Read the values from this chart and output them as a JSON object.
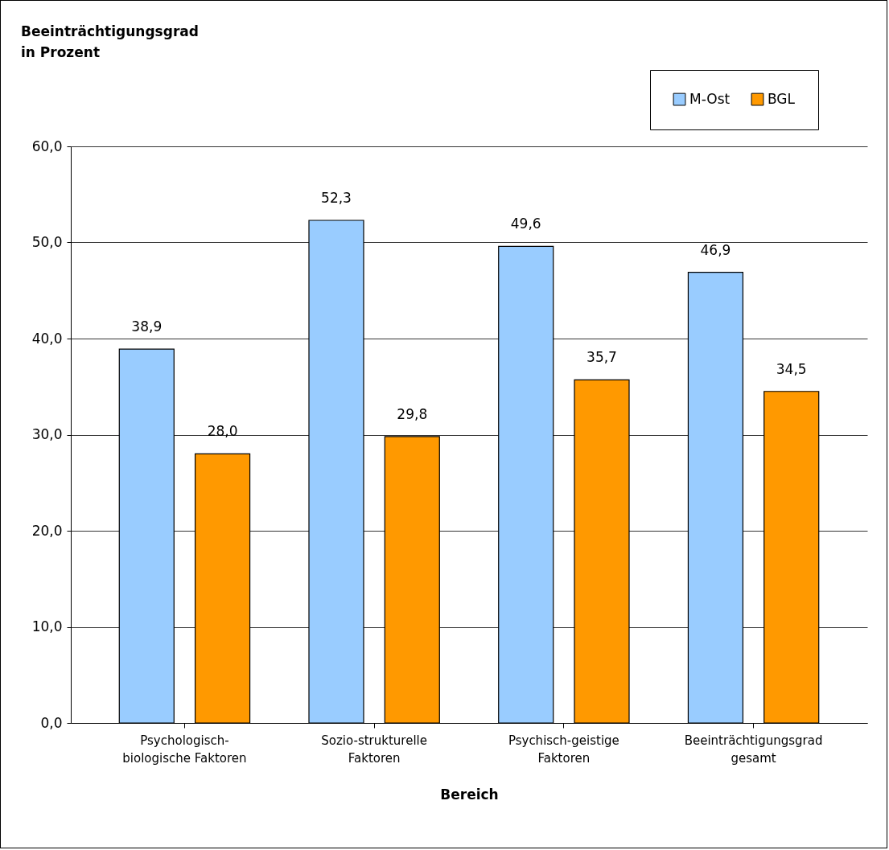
{
  "chart_data": {
    "type": "bar",
    "xlabel": "Bereich",
    "annotations": [
      "Beeinträchtigungsgrad\nin Prozent"
    ],
    "categories": [
      "Psychologisch-\nbiologische Faktoren",
      "Sozio-strukturelle\nFaktoren",
      "Psychisch-geistige\nFaktoren",
      "Beeinträchtigungsgrad\ngesamt"
    ],
    "series": [
      {
        "name": "M-Ost",
        "color": "#99ccff",
        "values": [
          38.9,
          52.3,
          49.6,
          46.9
        ],
        "value_labels": [
          "38,9",
          "52,3",
          "49,6",
          "46,9"
        ]
      },
      {
        "name": "BGL",
        "color": "#ff9900",
        "values": [
          28.0,
          29.8,
          35.7,
          34.5
        ],
        "value_labels": [
          "28,0",
          "29,8",
          "35,7",
          "34,5"
        ]
      }
    ],
    "ylim": [
      0,
      60
    ],
    "yticks": [
      {
        "value": 0,
        "label": "0,0"
      },
      {
        "value": 10,
        "label": "10,0"
      },
      {
        "value": 20,
        "label": "20,0"
      },
      {
        "value": 30,
        "label": "30,0"
      },
      {
        "value": 40,
        "label": "40,0"
      },
      {
        "value": 50,
        "label": "50,0"
      },
      {
        "value": 60,
        "label": "60,0"
      }
    ],
    "grid": "y",
    "legend": "top right"
  }
}
